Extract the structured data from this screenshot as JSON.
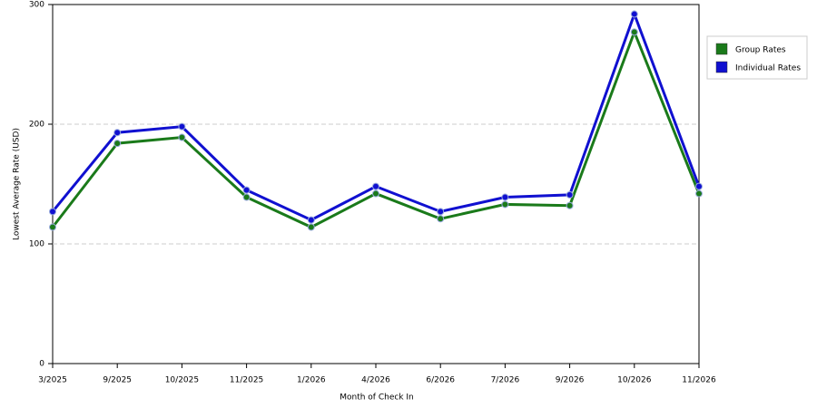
{
  "chart_data": {
    "type": "line",
    "x_label": "Month of Check In",
    "y_label": "Lowest Average Rate (USD)",
    "categories": [
      "3/2025",
      "9/2025",
      "10/2025",
      "11/2025",
      "1/2026",
      "4/2026",
      "6/2026",
      "7/2026",
      "9/2026",
      "10/2026",
      "11/2026"
    ],
    "series": [
      {
        "name": "Group Rates",
        "color": "#1a7a1a",
        "values": [
          114,
          184,
          189,
          139,
          114,
          142,
          121,
          133,
          132,
          277,
          142
        ]
      },
      {
        "name": "Individual Rates",
        "color": "#1010d0",
        "values": [
          127,
          193,
          198,
          145,
          120,
          148,
          127,
          139,
          141,
          292,
          148
        ]
      }
    ],
    "ylim": [
      0,
      300
    ],
    "yticks": [
      0,
      100,
      200,
      300
    ],
    "grid": true,
    "legend": "right"
  }
}
